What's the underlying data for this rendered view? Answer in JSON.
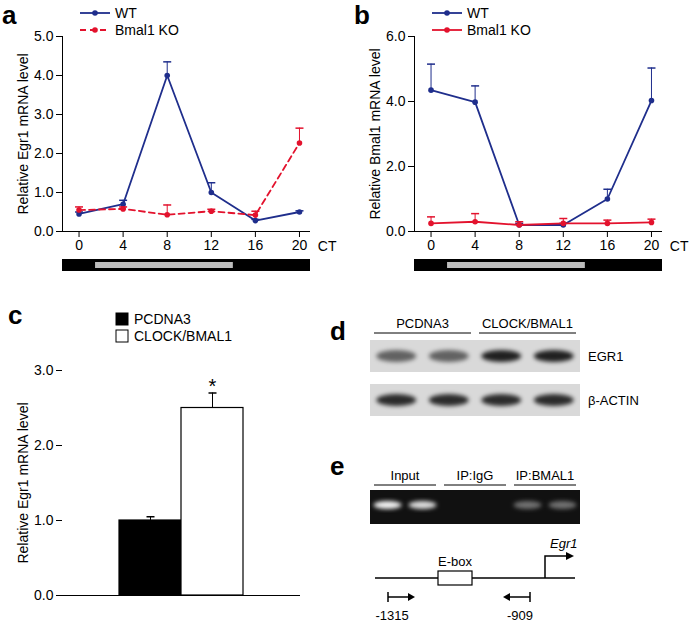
{
  "chart_data": [
    {
      "panel": "a",
      "type": "line",
      "ylabel": "Relative Egr1 mRNA level",
      "xlabel": "CT",
      "x": [
        0,
        4,
        8,
        12,
        16,
        20
      ],
      "xlim": [
        -1.5,
        21
      ],
      "xticks": [
        0,
        4,
        8,
        12,
        16,
        20
      ],
      "ylim": [
        0,
        5
      ],
      "yticks": [
        0,
        1,
        2,
        3,
        4,
        5
      ],
      "legend": "top-left",
      "light_phase": [
        1.5,
        14
      ],
      "series": [
        {
          "name": "WT",
          "color": "#1f2e8c",
          "marker": "circle",
          "line_style": "solid",
          "values": [
            0.45,
            0.7,
            4.0,
            1.0,
            0.28,
            0.5
          ],
          "errors": [
            0.05,
            0.1,
            0.35,
            0.25,
            0.03,
            0.03
          ]
        },
        {
          "name": "Bmal1 KO",
          "color": "#e3122d",
          "marker": "circle",
          "line_style": "dashed",
          "values": [
            0.55,
            0.58,
            0.43,
            0.52,
            0.42,
            2.27
          ],
          "errors": [
            0.08,
            0.05,
            0.25,
            0.05,
            0.1,
            0.38
          ]
        }
      ]
    },
    {
      "panel": "b",
      "type": "line",
      "ylabel": "Relative Bmal1 mRNA level",
      "xlabel": "CT",
      "x": [
        0,
        4,
        8,
        12,
        16,
        20
      ],
      "xlim": [
        -1.5,
        21
      ],
      "xticks": [
        0,
        4,
        8,
        12,
        16,
        20
      ],
      "ylim": [
        0,
        6
      ],
      "yticks": [
        0,
        2,
        4,
        6
      ],
      "legend": "top-left",
      "light_phase": [
        1.5,
        14
      ],
      "series": [
        {
          "name": "WT",
          "color": "#1f2e8c",
          "marker": "circle",
          "line_style": "solid",
          "values": [
            4.35,
            3.98,
            0.2,
            0.2,
            1.0,
            4.03
          ],
          "errors": [
            0.8,
            0.5,
            0.05,
            0.05,
            0.3,
            1.0
          ]
        },
        {
          "name": "Bmal1 KO",
          "color": "#e3122d",
          "marker": "circle",
          "line_style": "solid",
          "values": [
            0.25,
            0.3,
            0.2,
            0.25,
            0.25,
            0.28
          ],
          "errors": [
            0.2,
            0.25,
            0.1,
            0.15,
            0.1,
            0.1
          ]
        }
      ]
    },
    {
      "panel": "c",
      "type": "bar",
      "ylabel": "Relative Egr1 mRNA level",
      "categories": [
        "PCDNA3",
        "CLOCK/BMAL1"
      ],
      "values": [
        1.0,
        2.5
      ],
      "errors": [
        0.05,
        0.2
      ],
      "colors": [
        "#000000",
        "#ffffff"
      ],
      "ylim": [
        0,
        3
      ],
      "yticks": [
        0,
        1,
        2,
        3
      ],
      "legend": "top-left",
      "tick_labels": "y",
      "annotations": [
        {
          "category": "CLOCK/BMAL1",
          "text": "*"
        }
      ]
    }
  ],
  "blot": {
    "panel": "d",
    "groups": [
      {
        "label": "PCDNA3",
        "lanes": 2
      },
      {
        "label": "CLOCK/BMAL1",
        "lanes": 2
      }
    ],
    "rows": [
      {
        "label": "EGR1",
        "band_intensity": [
          0.55,
          0.55,
          0.85,
          0.85
        ]
      },
      {
        "label": "β-ACTIN",
        "band_intensity": [
          0.8,
          0.8,
          0.8,
          0.8
        ]
      }
    ]
  },
  "chip": {
    "panel": "e",
    "groups": [
      {
        "label": "Input",
        "lanes": 2
      },
      {
        "label": "IP:IgG",
        "lanes": 2
      },
      {
        "label": "IP:BMAL1",
        "lanes": 2
      }
    ],
    "band_intensity": [
      0.95,
      0.85,
      0,
      0,
      0.4,
      0.4
    ],
    "diagram": {
      "element": "E-box",
      "gene": "Egr1",
      "primers": [
        "-1315",
        "-909"
      ]
    }
  }
}
